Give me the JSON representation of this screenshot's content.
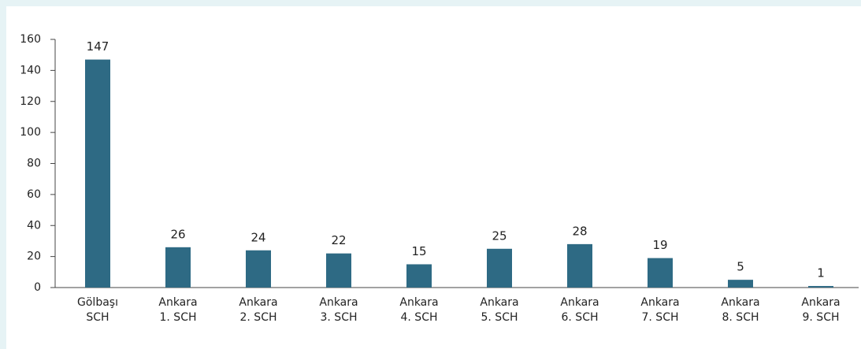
{
  "chart_data": {
    "type": "bar",
    "categories": [
      [
        "Gölbaşı",
        "SCH"
      ],
      [
        "Ankara",
        "1. SCH"
      ],
      [
        "Ankara",
        "2. SCH"
      ],
      [
        "Ankara",
        "3. SCH"
      ],
      [
        "Ankara",
        "4. SCH"
      ],
      [
        "Ankara",
        "5. SCH"
      ],
      [
        "Ankara",
        "6. SCH"
      ],
      [
        "Ankara",
        "7. SCH"
      ],
      [
        "Ankara",
        "8. SCH"
      ],
      [
        "Ankara",
        "9. SCH"
      ]
    ],
    "values": [
      147,
      26,
      24,
      22,
      15,
      25,
      28,
      19,
      5,
      1
    ],
    "color": "#2e6a84",
    "ylim": [
      0,
      160
    ],
    "yticks": [
      0,
      20,
      40,
      60,
      80,
      100,
      120,
      140,
      160
    ]
  }
}
